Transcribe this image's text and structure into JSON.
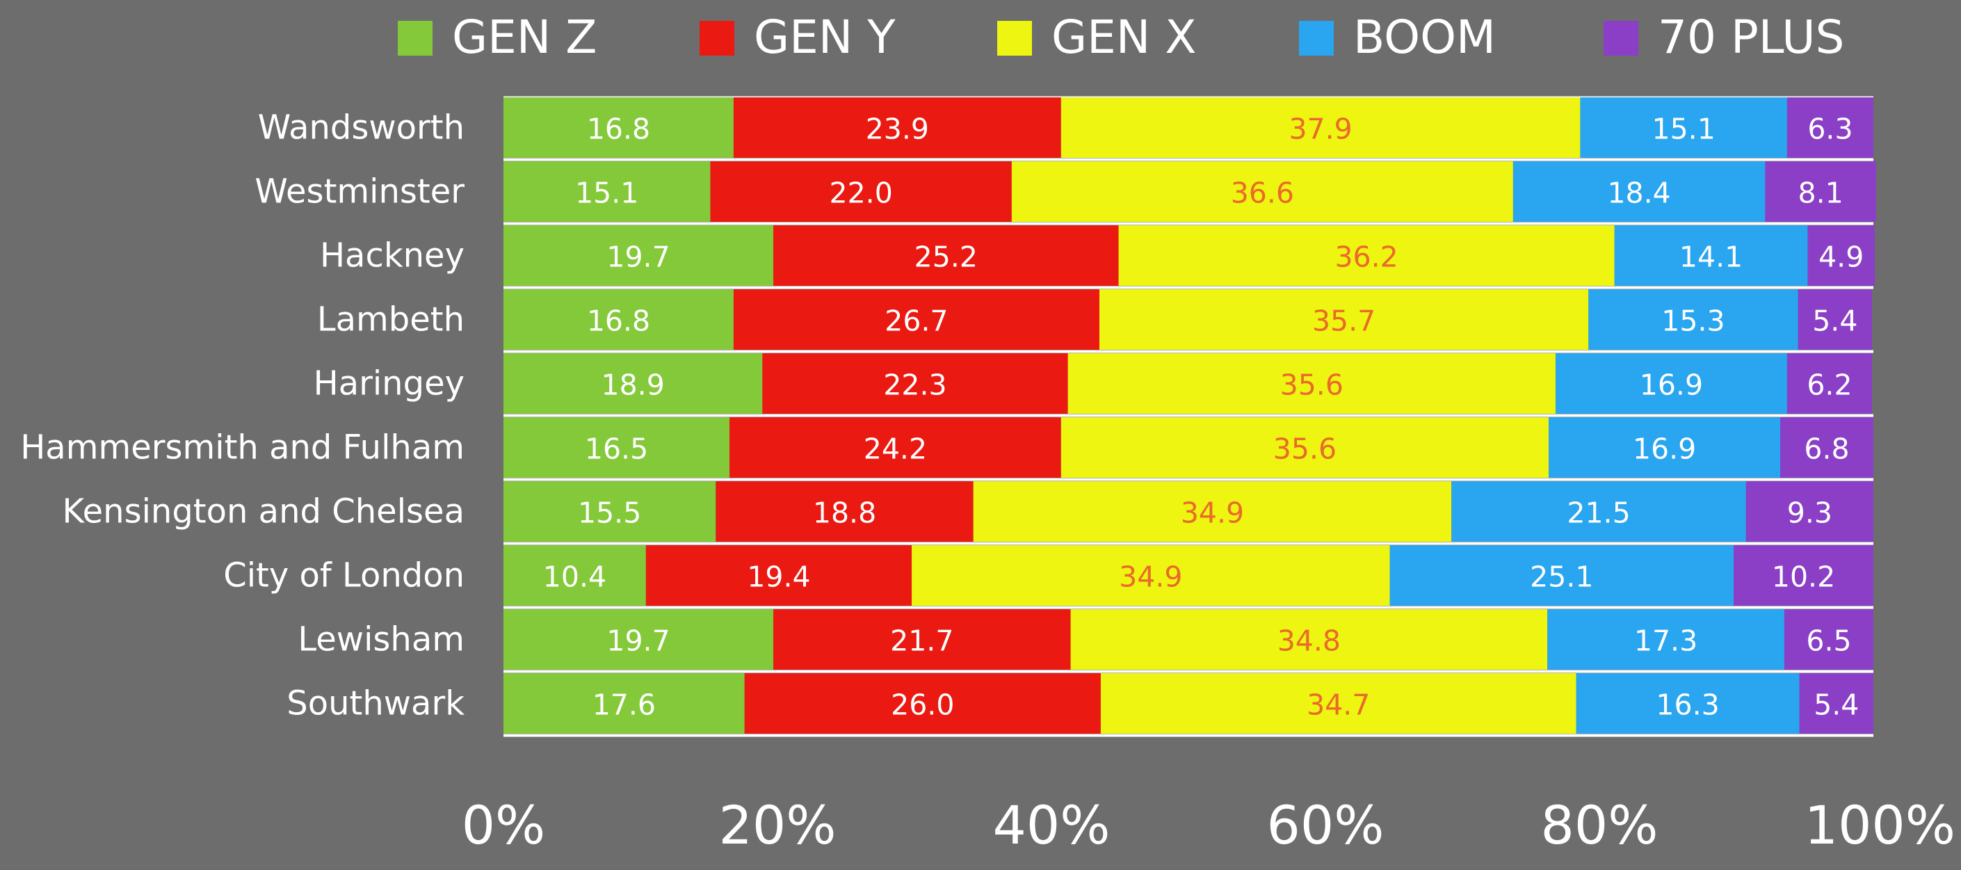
{
  "chart_data": {
    "type": "bar",
    "orientation": "horizontal",
    "stacked": true,
    "title": "",
    "xlabel": "",
    "ylabel": "",
    "xlim": [
      0,
      100
    ],
    "x_ticks": [
      "0%",
      "20%",
      "40%",
      "60%",
      "80%",
      "100%"
    ],
    "legend_position": "top",
    "grid": false,
    "categories": [
      "Wandsworth",
      "Westminster",
      "Hackney",
      "Lambeth",
      "Haringey",
      "Hammersmith and Fulham",
      "Kensington and Chelsea",
      "City of London",
      "Lewisham",
      "Southwark"
    ],
    "series": [
      {
        "name": "GEN Z",
        "color": "#84c93a",
        "label_color": "#ffffff",
        "values": [
          16.8,
          15.1,
          19.7,
          16.8,
          18.9,
          16.5,
          15.5,
          10.4,
          19.7,
          17.6
        ]
      },
      {
        "name": "GEN Y",
        "color": "#ea1a12",
        "label_color": "#ffffff",
        "values": [
          23.9,
          22.0,
          25.2,
          26.7,
          22.3,
          24.2,
          18.8,
          19.4,
          21.7,
          26.0
        ]
      },
      {
        "name": "GEN X",
        "color": "#eef510",
        "label_color": "#ea6a2a",
        "values": [
          37.9,
          36.6,
          36.2,
          35.7,
          35.6,
          35.6,
          34.9,
          34.9,
          34.8,
          34.7
        ]
      },
      {
        "name": "BOOM",
        "color": "#2aa5ef",
        "label_color": "#ffffff",
        "values": [
          15.1,
          18.4,
          14.1,
          15.3,
          16.9,
          16.9,
          21.5,
          25.1,
          17.3,
          16.3
        ]
      },
      {
        "name": "70 PLUS",
        "color": "#8a3fc6",
        "label_color": "#ffffff",
        "values": [
          6.3,
          8.1,
          4.9,
          5.4,
          6.2,
          6.8,
          9.3,
          10.2,
          6.5,
          5.4
        ]
      }
    ]
  }
}
